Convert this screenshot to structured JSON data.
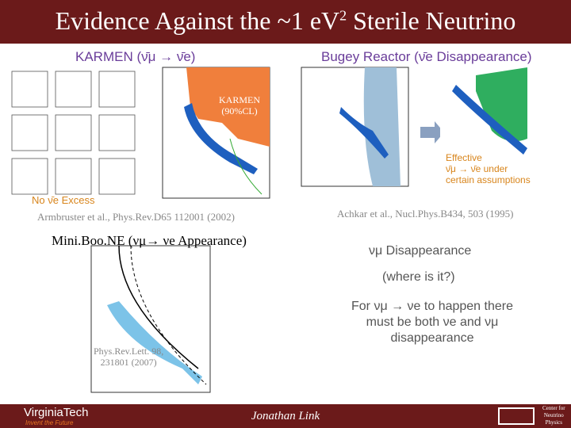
{
  "header": {
    "title_main": "Evidence Against the ~1 eV",
    "title_sup": "2",
    "title_end": " Sterile Neutrino"
  },
  "karmen": {
    "heading": "KARMEN (ν̄μ → ν̄e)",
    "region_label": "KARMEN\n(90%CL)",
    "note": "No ν̄e Excess",
    "citation": "Armbruster et al., Phys.Rev.D65 112001 (2002)"
  },
  "bugey": {
    "heading": "Bugey Reactor  (ν̄e Disappearance)",
    "note": "Effective\nν̄μ → ν̄e under\ncertain assumptions",
    "citation": "Achkar et al., Nucl.Phys.B434, 503 (1995)"
  },
  "miniboone": {
    "heading": "Mini.Boo.NE (νμ→ νe Appearance)",
    "citation": "Phys.Rev.Lett. 98,\n231801 (2007)"
  },
  "discussion": {
    "line1": "νμ Disappearance",
    "line2": "(where is it?)",
    "line3": "For νμ → νe to happen there\nmust be both νe and νμ\ndisappearance"
  },
  "footer": {
    "logo": "VirginiaTech",
    "tagline": "Invent the Future",
    "presenter": "Jonathan Link",
    "center": "Center for\nNeutrino\nPhysics"
  }
}
